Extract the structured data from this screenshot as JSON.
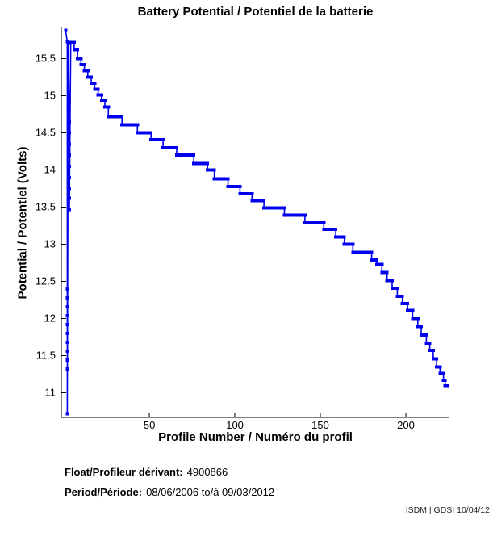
{
  "chart_data": {
    "type": "line",
    "title": "Battery Potential / Potentiel de la batterie",
    "xlabel": "Profile Number / Numéro du profil",
    "ylabel": "Potential / Potentiel (Volts)",
    "xlim": [
      -1.5,
      225.5
    ],
    "ylim": [
      10.67,
      15.93
    ],
    "xticks": [
      50,
      100,
      150,
      200
    ],
    "yticks": [
      11,
      11.5,
      12,
      12.5,
      13,
      13.5,
      14,
      14.5,
      15,
      15.5
    ],
    "grid": false,
    "legend": "none",
    "line_color": "#0000EE",
    "marker": "square",
    "series_name": "battery-potential",
    "first_point": [
      1,
      15.88
    ],
    "anomaly_points": [
      [
        2,
        15.73
      ],
      [
        2,
        12.4
      ],
      [
        2,
        12.28
      ],
      [
        2,
        12.16
      ],
      [
        2,
        12.04
      ],
      [
        2,
        11.92
      ],
      [
        2,
        11.8
      ],
      [
        2,
        11.68
      ],
      [
        2,
        11.56
      ],
      [
        2,
        11.44
      ],
      [
        2,
        11.32
      ],
      [
        2,
        10.72
      ],
      [
        2.6,
        15.7
      ],
      [
        3.2,
        14.65
      ],
      [
        3.2,
        14.5
      ],
      [
        3.2,
        14.35
      ],
      [
        3.2,
        14.2
      ],
      [
        3.2,
        14.05
      ],
      [
        3.2,
        13.9
      ],
      [
        3.2,
        13.75
      ],
      [
        3.2,
        13.62
      ],
      [
        3.2,
        13.47
      ]
    ],
    "plateaus": [
      [
        4,
        15.72
      ],
      [
        6,
        15.62
      ],
      [
        8,
        15.5
      ],
      [
        10,
        15.42
      ],
      [
        12,
        15.34
      ],
      [
        14,
        15.25
      ],
      [
        16,
        15.17
      ],
      [
        18,
        15.09
      ],
      [
        20,
        15.01
      ],
      [
        22,
        14.94
      ],
      [
        24,
        14.85
      ],
      [
        26,
        14.72
      ],
      [
        34,
        14.61
      ],
      [
        43,
        14.5
      ],
      [
        51,
        14.41
      ],
      [
        58,
        14.3
      ],
      [
        66,
        14.2
      ],
      [
        76,
        14.09
      ],
      [
        84,
        14.0
      ],
      [
        88,
        13.88
      ],
      [
        96,
        13.78
      ],
      [
        103,
        13.68
      ],
      [
        110,
        13.59
      ],
      [
        117,
        13.49
      ],
      [
        129,
        13.39
      ],
      [
        141,
        13.29
      ],
      [
        152,
        13.2
      ],
      [
        159,
        13.1
      ],
      [
        164,
        13.0
      ],
      [
        169,
        12.89
      ],
      [
        180,
        12.79
      ],
      [
        183,
        12.73
      ],
      [
        186,
        12.62
      ],
      [
        189,
        12.51
      ],
      [
        192,
        12.41
      ],
      [
        195,
        12.3
      ],
      [
        198,
        12.2
      ],
      [
        201,
        12.11
      ],
      [
        204,
        12.0
      ],
      [
        207,
        11.89
      ],
      [
        209,
        11.78
      ],
      [
        212,
        11.67
      ],
      [
        214,
        11.57
      ],
      [
        216,
        11.46
      ],
      [
        218,
        11.35
      ],
      [
        220,
        11.26
      ],
      [
        222,
        11.17
      ],
      [
        223,
        11.1
      ]
    ],
    "x_end": 224
  },
  "footer": {
    "float_label": "Float/Profileur dérivant:",
    "float_value": "4900866",
    "period_label": "Period/Période:",
    "period_value": "08/06/2006 to/à  09/03/2012",
    "credit": "ISDM | GDSI 10/04/12"
  }
}
